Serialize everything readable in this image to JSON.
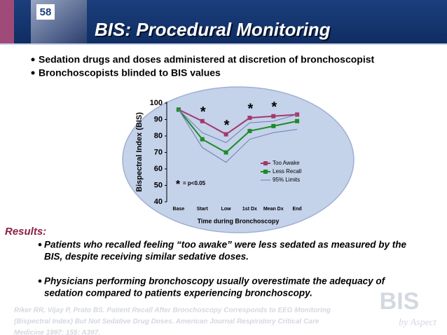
{
  "slide": {
    "badge": "58",
    "title": "BIS: Procedural Monitoring",
    "bullets": [
      "Sedation drugs and doses administered at discretion of bronchoscopist",
      "Bronchoscopists blinded to BIS values"
    ],
    "results_heading": "Results:",
    "results": [
      [
        "Patients who recalled feeling “too awake” were less sedated as measured by the",
        "BIS, despite receiving similar sedative doses."
      ],
      [
        "Physicians performing bronchoscopy usually overestimate the adequacy of",
        "sedation compared to patients experiencing bronchoscopy."
      ]
    ],
    "citation": [
      "Riker RR, Vijay P, Prato BS. Patient Recall After Bronchoscopy Corresponds to EEG Monitoring",
      "(Bispectral Index) But Not Sedative Drug Doses. American Journal Respiratory Critical Care",
      "Medicine 1997; 155: A397."
    ],
    "logo": "BIS",
    "logo_sub": "by Aspect"
  },
  "chart_data": {
    "type": "line",
    "y_label": "Bispectral Index (BIS)",
    "x_label": "Time during Bronchoscopy",
    "categories": [
      "Base",
      "Start",
      "Low",
      "1st Dx",
      "Mean Dx",
      "End"
    ],
    "series": [
      {
        "name": "Too Awake",
        "color": "#a3386c",
        "values": [
          96,
          89,
          81,
          91,
          92,
          93
        ]
      },
      {
        "name": "Less Recall",
        "color": "#1e8a28",
        "values": [
          96,
          78,
          70,
          83,
          86,
          89
        ]
      },
      {
        "name": "95% Limits",
        "color": "#6d7fae",
        "values": [
          96,
          82,
          76,
          88,
          89,
          93
        ],
        "values_low": [
          96,
          73,
          64,
          78,
          82,
          84
        ]
      }
    ],
    "annotations": [
      {
        "text": "*",
        "category": "Start"
      },
      {
        "text": "*",
        "category": "Low"
      },
      {
        "text": "*",
        "category": "1st Dx"
      },
      {
        "text": "*",
        "category": "Mean Dx"
      }
    ],
    "note_symbol": "*",
    "note": "= p<0.05",
    "ylim": [
      40,
      100
    ],
    "yticks": [
      40,
      50,
      60,
      70,
      80,
      90,
      100
    ],
    "legend": "right"
  }
}
